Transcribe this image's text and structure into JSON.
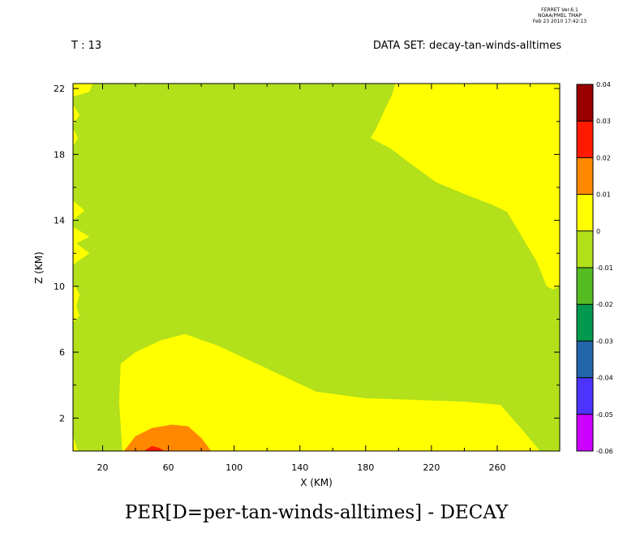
{
  "header": {
    "stamp_line1": "FERRET  Ver.6.1",
    "stamp_line2": "NOAA/PMEL TMAP",
    "stamp_line3": "Feb 23 2010 17:42:13",
    "time_label": "T : 13",
    "dataset_label": "DATA SET: decay-tan-winds-alltimes"
  },
  "chart_data": {
    "type": "filled-contour",
    "title": "PER[D=per-tan-winds-alltimes] - DECAY",
    "xlabel": "X (KM)",
    "ylabel": "Z (KM)",
    "xlim": [
      2,
      298
    ],
    "ylim": [
      0,
      22.3
    ],
    "x_ticks": [
      20,
      60,
      100,
      140,
      180,
      220,
      260
    ],
    "y_ticks": [
      2,
      6,
      10,
      14,
      18,
      22
    ],
    "colorbar": {
      "levels": [
        -0.06,
        -0.05,
        -0.04,
        -0.03,
        -0.02,
        -0.01,
        0,
        0.01,
        0.02,
        0.03,
        0.04
      ],
      "labels": [
        "-0.06",
        "-0.05",
        "-0.04",
        "-0.03",
        "-0.02",
        "-0.01",
        "0",
        "0.01",
        "0.02",
        "0.03",
        "0.04"
      ],
      "colors": [
        "#cc00ff",
        "#4d33ff",
        "#2266aa",
        "#00994d",
        "#55bb22",
        "#b2e01a",
        "#ffff00",
        "#ff8800",
        "#ff1a00",
        "#990000"
      ]
    },
    "background_band": "-0.01 to 0",
    "regions": [
      {
        "band": "0 to 0.01",
        "color": "#ffff00",
        "points": [
          [
            70,
            7.1
          ],
          [
            90,
            6.4
          ],
          [
            120,
            5.0
          ],
          [
            150,
            3.6
          ],
          [
            180,
            3.2
          ],
          [
            210,
            3.1
          ],
          [
            240,
            3.0
          ],
          [
            262,
            2.8
          ],
          [
            276,
            1.2
          ],
          [
            286,
            0
          ],
          [
            32,
            0
          ],
          [
            30,
            3.0
          ],
          [
            31,
            5.3
          ],
          [
            40,
            6.0
          ],
          [
            55,
            6.7
          ]
        ]
      },
      {
        "band": "0 to 0.01",
        "color": "#ffff00",
        "points": [
          [
            198,
            22.3
          ],
          [
            298,
            22.3
          ],
          [
            298,
            10.0
          ],
          [
            294,
            9.8
          ],
          [
            290,
            10.0
          ],
          [
            284,
            11.5
          ],
          [
            275,
            13.0
          ],
          [
            266,
            14.5
          ],
          [
            258,
            14.9
          ],
          [
            240,
            15.6
          ],
          [
            223,
            16.3
          ],
          [
            205,
            17.6
          ],
          [
            196,
            18.3
          ],
          [
            183,
            19.0
          ],
          [
            186,
            19.5
          ],
          [
            192,
            20.8
          ],
          [
            196,
            21.6
          ]
        ]
      },
      {
        "band": "0 to 0.01",
        "color": "#ffff00",
        "points": [
          [
            2,
            22.3
          ],
          [
            14,
            22.3
          ],
          [
            12,
            21.8
          ],
          [
            2,
            21.5
          ]
        ]
      },
      {
        "band": "0 to 0.01",
        "color": "#ffff00",
        "points": [
          [
            2,
            21.0
          ],
          [
            6,
            20.4
          ],
          [
            2,
            19.8
          ]
        ]
      },
      {
        "band": "0 to 0.01",
        "color": "#ffff00",
        "points": [
          [
            2,
            19.6
          ],
          [
            5,
            19.0
          ],
          [
            2,
            18.5
          ]
        ]
      },
      {
        "band": "0 to 0.01",
        "color": "#ffff00",
        "points": [
          [
            2,
            15.2
          ],
          [
            9,
            14.6
          ],
          [
            2,
            14.0
          ]
        ]
      },
      {
        "band": "0 to 0.01",
        "color": "#ffff00",
        "points": [
          [
            2,
            13.6
          ],
          [
            12,
            13.0
          ],
          [
            4,
            12.6
          ],
          [
            12,
            12.0
          ],
          [
            2,
            11.3
          ]
        ]
      },
      {
        "band": "0 to 0.01",
        "color": "#ffff00",
        "points": [
          [
            2,
            10.2
          ],
          [
            6,
            9.5
          ],
          [
            4,
            8.8
          ],
          [
            6,
            8.2
          ],
          [
            2,
            7.8
          ]
        ]
      },
      {
        "band": "0 to 0.01",
        "color": "#ffff00",
        "points": [
          [
            2,
            0.9
          ],
          [
            5,
            0
          ],
          [
            2,
            0
          ]
        ]
      },
      {
        "band": "0.01 to 0.02",
        "color": "#ff8800",
        "points": [
          [
            33,
            0
          ],
          [
            40,
            0.9
          ],
          [
            50,
            1.4
          ],
          [
            62,
            1.6
          ],
          [
            72,
            1.5
          ],
          [
            80,
            0.8
          ],
          [
            86,
            0
          ]
        ]
      },
      {
        "band": "0.02 to 0.03",
        "color": "#ff1a00",
        "points": [
          [
            45,
            0
          ],
          [
            50,
            0.3
          ],
          [
            54,
            0.2
          ],
          [
            58,
            0
          ]
        ]
      }
    ]
  }
}
